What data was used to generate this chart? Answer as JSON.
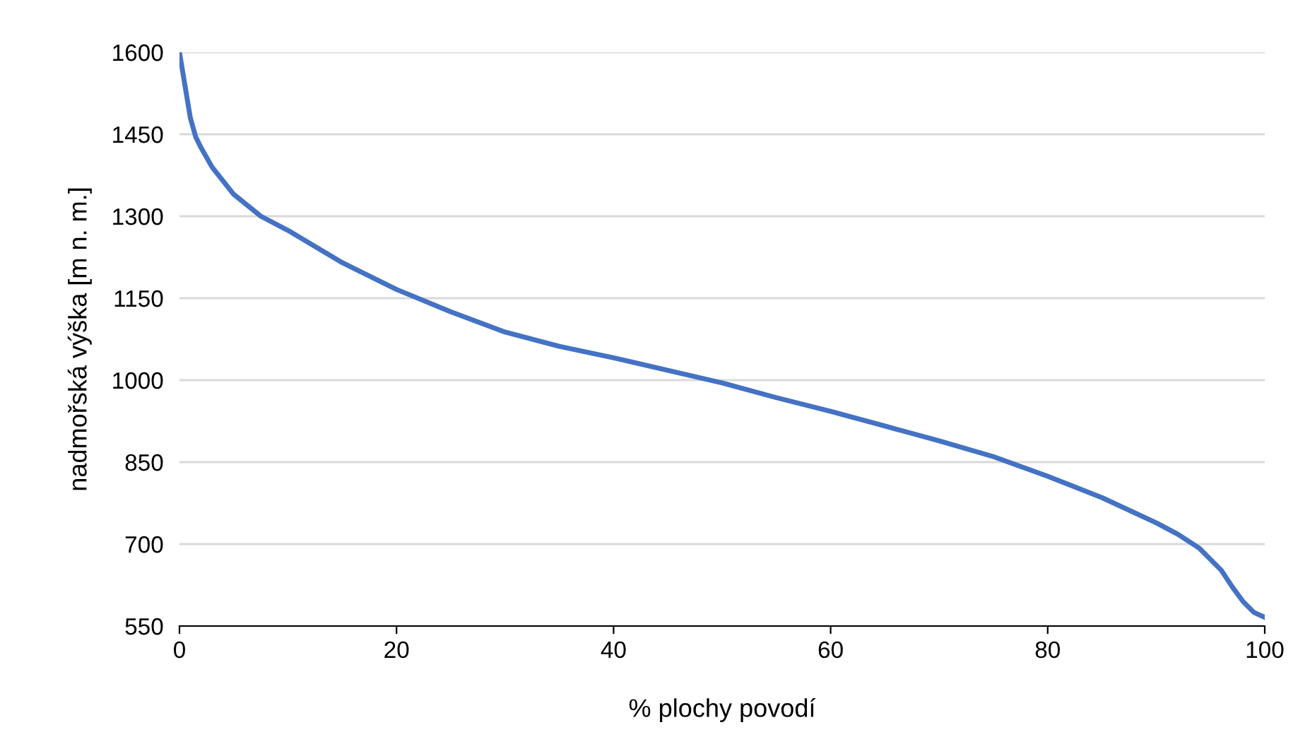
{
  "chart_data": {
    "type": "line",
    "xlabel": "% plochy povodí",
    "ylabel": "nadmořská výška [m n. m.]",
    "x": [
      0,
      0.5,
      1,
      1.5,
      2,
      3,
      5,
      7.5,
      10,
      15,
      20,
      25,
      30,
      35,
      40,
      45,
      50,
      55,
      60,
      65,
      70,
      75,
      80,
      85,
      90,
      92,
      94,
      96,
      97,
      98,
      99,
      100
    ],
    "series": [
      {
        "color": "#4472c4",
        "values": [
          1600,
          1540,
          1480,
          1445,
          1425,
          1390,
          1340,
          1300,
          1274,
          1215,
          1166,
          1125,
          1088,
          1062,
          1041,
          1018,
          995,
          968,
          943,
          916,
          889,
          860,
          824,
          785,
          739,
          718,
          692,
          652,
          622,
          595,
          575,
          566
        ]
      }
    ],
    "xlim": [
      0,
      100
    ],
    "xticks": [
      0,
      20,
      40,
      60,
      80,
      100
    ],
    "ylim": [
      550,
      1600
    ],
    "yticks": [
      550,
      700,
      850,
      1000,
      1150,
      1300,
      1450,
      1600
    ],
    "grid": "y",
    "line_style": "solid",
    "marker": "none"
  }
}
